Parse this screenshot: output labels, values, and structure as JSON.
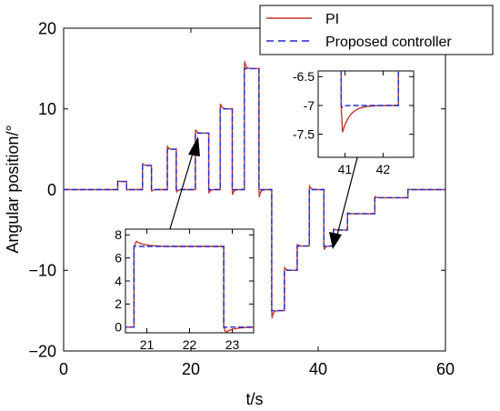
{
  "colors": {
    "pi": "#c0392b",
    "proposed": "#2626d9",
    "axis": "#000000",
    "background": "#ffffff"
  },
  "legend": {
    "placement": "top-right",
    "entries": [
      "PI",
      "Proposed controller"
    ]
  },
  "chart_data": [
    {
      "type": "line",
      "xlabel": "t/s",
      "ylabel": "Angular position/°",
      "xlim": [
        0,
        60
      ],
      "ylim": [
        -20,
        20
      ],
      "xticks": [
        0,
        20,
        40,
        60
      ],
      "yticks": [
        20,
        10,
        0,
        -10,
        -20
      ],
      "xtick_labels": [
        "0",
        "20",
        "40",
        "60"
      ],
      "ytick_labels": [
        "20",
        "10",
        "0",
        "−10",
        "−20"
      ],
      "grid": false,
      "reference_steps": {
        "description_levels": "piecewise-constant step sequence",
        "t": [
          0,
          8.5,
          9.9,
          12.4,
          13.8,
          16.3,
          17.7,
          20.7,
          22.8,
          24.6,
          26.5,
          28.4,
          30.7,
          32.7,
          34.7,
          36.7,
          38.6,
          40.9,
          42.4,
          44.6,
          46.8,
          48.9,
          50.9,
          54.1,
          60
        ],
        "level": [
          0,
          1,
          0,
          3,
          0,
          5,
          0,
          7,
          0,
          10,
          0,
          15,
          0,
          -15,
          -10,
          -7,
          0,
          -7,
          -5,
          -3,
          -3,
          -1,
          -1,
          0,
          0
        ]
      },
      "series": [
        {
          "name": "PI",
          "overshoot_pct": 8,
          "settle_s": 0.6
        },
        {
          "name": "Proposed controller",
          "overshoot_pct": 1,
          "settle_s": 0.15
        }
      ]
    },
    {
      "type": "line",
      "inset": "zoom-left",
      "xlim": [
        20.5,
        23.5
      ],
      "ylim": [
        -0.5,
        8.5
      ],
      "xticks": [
        21,
        22,
        23
      ],
      "yticks": [
        8,
        6,
        4,
        2,
        0
      ],
      "xtick_labels": [
        "21",
        "22",
        "23"
      ],
      "ytick_labels": [
        "8",
        "6",
        "4",
        "2",
        "0"
      ],
      "arrow_target": {
        "x": 21.8,
        "y": 7
      }
    },
    {
      "type": "line",
      "inset": "zoom-right",
      "xlim": [
        40.3,
        42.8
      ],
      "ylim": [
        -7.9,
        -6.4
      ],
      "xticks": [
        41,
        42
      ],
      "yticks": [
        -6.5,
        -7,
        -7.5
      ],
      "xtick_labels": [
        "41",
        "42"
      ],
      "ytick_labels": [
        "-6.5",
        "-7",
        "-7.5"
      ],
      "arrow_target": {
        "x": 41.8,
        "y": -7
      }
    }
  ]
}
